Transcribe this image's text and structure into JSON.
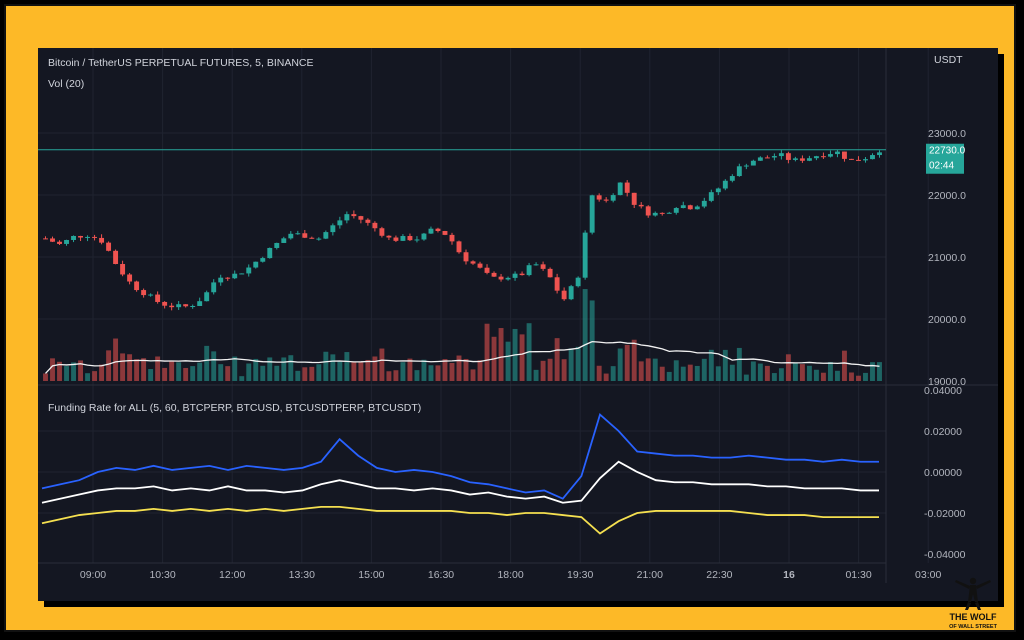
{
  "colors": {
    "frame": "#FDB927",
    "panel_bg": "#141722",
    "up": "#26A69A",
    "down": "#EF5350",
    "price_line": "#26A69A",
    "vol_ma": "#F2F2F2",
    "blue": "#2962FF",
    "white": "#FFFFFF",
    "yellow": "#F5E050",
    "axis_text": "#B2B5BE",
    "logo_text": "#111111"
  },
  "header": {
    "title": "Bitcoin / TetherUS PERPETUAL FUTURES, 5, BINANCE",
    "vol_label": "Vol (20)",
    "currency": "USDT"
  },
  "price_label": {
    "value": "22730.0",
    "countdown": "02:44"
  },
  "indicator": {
    "label": "Funding Rate for ALL (5, 60, BTCPERP, BTCUSD, BTCUSDTPERP, BTCUSDT)"
  },
  "logo": {
    "line1": "THE WOLF",
    "line2": "OF WALL STREET"
  },
  "chart_data": [
    {
      "type": "candlestick",
      "yaxis_ticks": [
        "23000.0",
        "22000.0",
        "21000.0",
        "20000.0",
        "19000.0"
      ],
      "ylim": [
        19000,
        23000
      ],
      "xaxis_ticks": [
        "09:00",
        "10:30",
        "12:00",
        "13:30",
        "15:00",
        "16:30",
        "18:00",
        "19:30",
        "21:00",
        "22:30",
        "16",
        "01:30",
        "03:00"
      ],
      "current_price": 22730,
      "close_path": [
        21300,
        21200,
        21330,
        21360,
        21250,
        20850,
        20550,
        20400,
        20250,
        20200,
        20200,
        20350,
        20700,
        20700,
        20800,
        21000,
        21200,
        21380,
        21350,
        21300,
        21500,
        21700,
        21600,
        21450,
        21280,
        21300,
        21300,
        21450,
        21350,
        21000,
        20850,
        20650,
        20680,
        20700,
        20900,
        20700,
        20300,
        20650,
        22000,
        21900,
        22200,
        21850,
        21700,
        21700,
        21850,
        21800,
        21950,
        22150,
        22400,
        22550,
        22600,
        22650,
        22550,
        22600,
        22660,
        22700,
        22550,
        22600,
        22730
      ],
      "volume_ma_label": "Vol (20)"
    },
    {
      "type": "line",
      "title": "Funding Rate for ALL (5, 60, BTCPERP, BTCUSD, BTCUSDTPERP, BTCUSDT)",
      "yaxis_ticks": [
        "0.04000",
        "0.02000",
        "0.00000",
        "-0.02000",
        "-0.04000"
      ],
      "ylim": [
        -0.04,
        0.04
      ],
      "series": [
        {
          "color": "blue",
          "values": [
            -0.008,
            -0.006,
            -0.004,
            0.0,
            0.002,
            0.001,
            0.003,
            0.001,
            0.002,
            0.003,
            0.001,
            0.003,
            0.002,
            0.001,
            0.002,
            0.005,
            0.016,
            0.008,
            0.002,
            0.0,
            0.001,
            0.0,
            -0.002,
            -0.005,
            -0.006,
            -0.008,
            -0.01,
            -0.009,
            -0.013,
            -0.002,
            0.028,
            0.02,
            0.01,
            0.009,
            0.008,
            0.008,
            0.007,
            0.007,
            0.008,
            0.007,
            0.006,
            0.006,
            0.005,
            0.006,
            0.005,
            0.005
          ]
        },
        {
          "color": "white",
          "values": [
            -0.015,
            -0.013,
            -0.011,
            -0.009,
            -0.008,
            -0.008,
            -0.007,
            -0.009,
            -0.008,
            -0.009,
            -0.007,
            -0.009,
            -0.009,
            -0.01,
            -0.009,
            -0.006,
            -0.004,
            -0.006,
            -0.008,
            -0.008,
            -0.009,
            -0.008,
            -0.009,
            -0.011,
            -0.01,
            -0.012,
            -0.013,
            -0.012,
            -0.015,
            -0.014,
            -0.003,
            0.005,
            0.0,
            -0.004,
            -0.005,
            -0.005,
            -0.006,
            -0.006,
            -0.006,
            -0.007,
            -0.007,
            -0.008,
            -0.008,
            -0.008,
            -0.009,
            -0.009
          ]
        },
        {
          "color": "yellow",
          "values": [
            -0.025,
            -0.023,
            -0.021,
            -0.02,
            -0.019,
            -0.019,
            -0.018,
            -0.019,
            -0.018,
            -0.019,
            -0.018,
            -0.019,
            -0.018,
            -0.019,
            -0.018,
            -0.017,
            -0.017,
            -0.018,
            -0.019,
            -0.019,
            -0.019,
            -0.019,
            -0.019,
            -0.02,
            -0.02,
            -0.021,
            -0.02,
            -0.02,
            -0.021,
            -0.022,
            -0.03,
            -0.024,
            -0.02,
            -0.019,
            -0.019,
            -0.019,
            -0.019,
            -0.019,
            -0.02,
            -0.021,
            -0.021,
            -0.021,
            -0.022,
            -0.022,
            -0.022,
            -0.022
          ]
        }
      ]
    }
  ]
}
